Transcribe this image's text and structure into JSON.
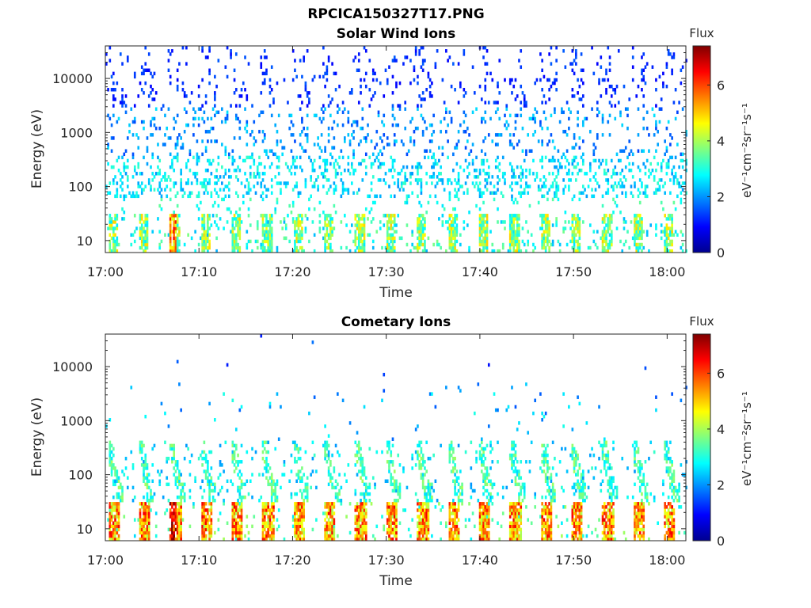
{
  "figure": {
    "title": "RPCICA150327T17.PNG"
  },
  "chart_data": [
    {
      "type": "heatmap",
      "title": "Solar Wind Ions",
      "xlabel": "Time",
      "ylabel": "Energy (eV)",
      "x_ticks": [
        "17:00",
        "17:10",
        "17:20",
        "17:30",
        "17:40",
        "17:50",
        "18:00"
      ],
      "x_range": [
        "17:00",
        "18:02"
      ],
      "y_scale": "log",
      "y_ticks": [
        "10",
        "100",
        "1000",
        "10000"
      ],
      "y_range": [
        6,
        40000
      ],
      "colorbar": {
        "label": "Flux",
        "units": "eV⁻¹cm⁻²sr⁻¹s⁻¹",
        "ticks": [
          "0",
          "2",
          "4",
          "6"
        ],
        "range": [
          0,
          7.4
        ],
        "colormap": "jet"
      },
      "description_of_pattern": "sparse blue counts 300-30000 eV; cyan band 100-300 eV; repeating low-energy (<30 eV) green/yellow bursts every ~3.3 min",
      "burst_period_min": 3.3,
      "peak_flux": 6.5
    },
    {
      "type": "heatmap",
      "title": "Cometary Ions",
      "xlabel": "Time",
      "ylabel": "Energy (eV)",
      "x_ticks": [
        "17:00",
        "17:10",
        "17:20",
        "17:30",
        "17:40",
        "17:50",
        "18:00"
      ],
      "x_range": [
        "17:00",
        "18:02"
      ],
      "y_scale": "log",
      "y_ticks": [
        "10",
        "100",
        "1000",
        "10000"
      ],
      "y_range": [
        6,
        40000
      ],
      "colorbar": {
        "label": "Flux",
        "units": "eV⁻¹cm⁻²sr⁻¹s⁻¹",
        "ticks": [
          "0",
          "2",
          "4",
          "6"
        ],
        "range": [
          0,
          7.4
        ],
        "colormap": "jet"
      },
      "description_of_pattern": "strong low-energy bursts (<30 eV, yellow-red) every ~3.3 min with dispersed cyan/green tails rising to ~300 eV; sparse counts up to ~3000 eV",
      "burst_period_min": 3.3,
      "peak_flux": 7.2
    }
  ]
}
